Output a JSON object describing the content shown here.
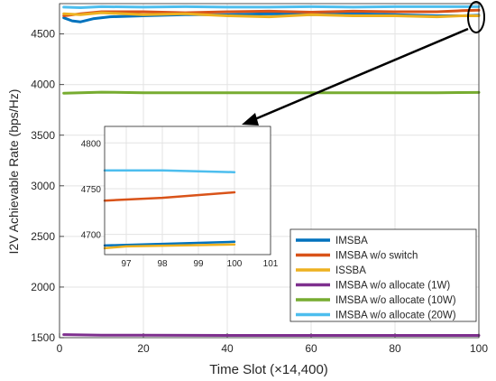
{
  "chart_data": {
    "type": "line",
    "xlabel": "Time Slot (×14,400)",
    "ylabel": "I2V Achievable Rate (bps/Hz)",
    "xlim": [
      0,
      100
    ],
    "ylim": [
      1500,
      4800
    ],
    "xticks": [
      "0",
      "20",
      "40",
      "60",
      "80",
      "100"
    ],
    "yticks": [
      "1500",
      "2000",
      "2500",
      "3000",
      "3500",
      "4000",
      "4500"
    ],
    "grid": true,
    "legend_position": "bottom-right",
    "series": [
      {
        "name": "IMSBA",
        "color": "#0072BD",
        "x": [
          1,
          3,
          5,
          8,
          12,
          20,
          30,
          40,
          50,
          60,
          70,
          80,
          90,
          96,
          100
        ],
        "y": [
          4660,
          4630,
          4620,
          4650,
          4670,
          4680,
          4690,
          4690,
          4700,
          4690,
          4700,
          4690,
          4680,
          4680,
          4685
        ]
      },
      {
        "name": "IMSBA w/o switch",
        "color": "#D95319",
        "x": [
          1,
          5,
          10,
          20,
          30,
          40,
          50,
          60,
          70,
          80,
          90,
          96,
          100
        ],
        "y": [
          4680,
          4700,
          4720,
          4720,
          4710,
          4720,
          4725,
          4715,
          4725,
          4720,
          4720,
          4730,
          4735
        ]
      },
      {
        "name": "ISSBA",
        "color": "#EDB120",
        "x": [
          1,
          5,
          10,
          20,
          30,
          40,
          50,
          60,
          70,
          80,
          90,
          96,
          100
        ],
        "y": [
          4700,
          4690,
          4710,
          4690,
          4700,
          4680,
          4670,
          4690,
          4680,
          4680,
          4670,
          4680,
          4680
        ]
      },
      {
        "name": "IMSBA w/o allocate (1W)",
        "color": "#7E2F8E",
        "x": [
          1,
          10,
          20,
          40,
          60,
          80,
          100
        ],
        "y": [
          1530,
          1525,
          1525,
          1522,
          1522,
          1522,
          1522
        ]
      },
      {
        "name": "IMSBA w/o allocate (10W)",
        "color": "#77AC30",
        "x": [
          1,
          5,
          10,
          20,
          30,
          40,
          50,
          60,
          70,
          80,
          90,
          100
        ],
        "y": [
          3915,
          3920,
          3925,
          3920,
          3920,
          3920,
          3920,
          3920,
          3920,
          3920,
          3920,
          3922
        ]
      },
      {
        "name": "IMSBA w/o allocate (20W)",
        "color": "#4DBEEE",
        "x": [
          1,
          5,
          10,
          20,
          30,
          40,
          50,
          60,
          70,
          80,
          90,
          100
        ],
        "y": [
          4765,
          4760,
          4770,
          4765,
          4770,
          4765,
          4765,
          4770,
          4765,
          4770,
          4770,
          4770
        ]
      }
    ],
    "inset": {
      "xlim": [
        96.4,
        101
      ],
      "ylim": [
        4678,
        4818
      ],
      "xticks": [
        "97",
        "98",
        "99",
        "100",
        "101"
      ],
      "yticks": [
        "4700",
        "4750",
        "4800"
      ],
      "series": [
        {
          "name": "IMSBA",
          "x": [
            96.4,
            100
          ],
          "y": [
            4688,
            4692
          ]
        },
        {
          "name": "IMSBA w/o switch",
          "x": [
            96.4,
            98,
            100
          ],
          "y": [
            4737,
            4740,
            4746
          ]
        },
        {
          "name": "ISSBA",
          "x": [
            96.4,
            97,
            100
          ],
          "y": [
            4685,
            4687,
            4689
          ]
        },
        {
          "name": "IMSBA w/o allocate (20W)",
          "x": [
            96.4,
            98,
            100
          ],
          "y": [
            4770,
            4770,
            4768
          ]
        }
      ]
    }
  }
}
